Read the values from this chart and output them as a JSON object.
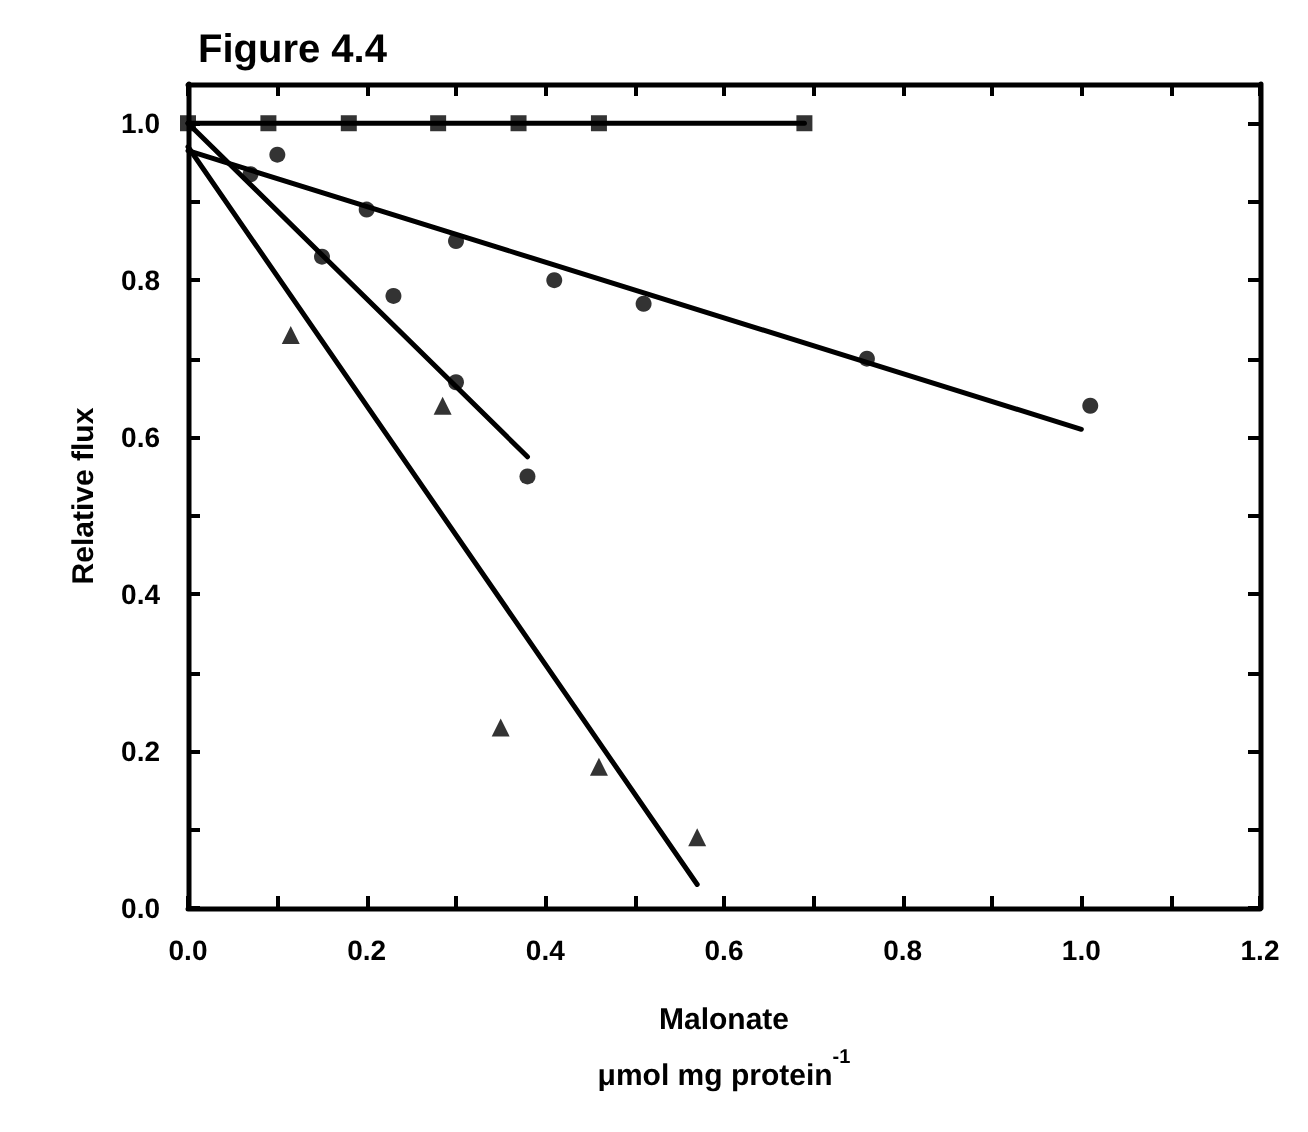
{
  "chart_data": {
    "type": "scatter",
    "title": "Figure 4.4",
    "xlabel": "Malonate\nμmol mg protein$^{-1}$",
    "ylabel": "Relative flux",
    "xlim": [
      0,
      1.2
    ],
    "xticks": [
      {
        "value": 0,
        "label": "0.0"
      },
      {
        "value": 0.1,
        "label": null
      },
      0.2,
      {
        "value": 0.3,
        "label": null
      },
      0.4,
      {
        "value": 0.5,
        "label": null
      },
      0.6,
      {
        "value": 0.7,
        "label": null
      },
      0.8,
      {
        "value": 0.9,
        "label": null
      },
      {
        "value": 1,
        "label": "1.0"
      },
      {
        "value": 1.1,
        "label": null
      },
      1.2
    ],
    "ylim": [
      0,
      1.05
    ],
    "yticks": [
      {
        "value": 0,
        "label": "0.0"
      },
      {
        "value": 0.1,
        "label": null
      },
      0.2,
      {
        "value": 0.3,
        "label": null
      },
      0.4,
      {
        "value": 0.5,
        "label": null
      },
      0.6,
      {
        "value": 0.7,
        "label": null
      },
      0.8,
      {
        "value": 0.9,
        "label": null
      },
      {
        "value": 1,
        "label": "1.0"
      }
    ],
    "grid": false,
    "series": [
      {
        "marker": "square",
        "color": "#000000",
        "x": [
          0,
          0.09,
          0.18,
          0.28,
          0.37,
          0.46,
          0.69
        ],
        "values": [
          1.0,
          1.0,
          1.0,
          1.0,
          1.0,
          1.0,
          1.0
        ]
      },
      {
        "type": "line",
        "marker": "none",
        "color": "#000000",
        "x": [
          0,
          0.69
        ],
        "values": [
          1.0,
          1.0
        ]
      },
      {
        "marker": "circle",
        "color": "#000000",
        "x": [
          0.1,
          0.2,
          0.3,
          0.41,
          0.51,
          0.76,
          1.01
        ],
        "values": [
          0.96,
          0.89,
          0.85,
          0.8,
          0.77,
          0.7,
          0.64
        ]
      },
      {
        "type": "line",
        "marker": "none",
        "color": "#000000",
        "x": [
          0,
          1.0
        ],
        "values": [
          0.965,
          0.61
        ]
      },
      {
        "marker": "circle",
        "color": "#000000",
        "x": [
          0.07,
          0.15,
          0.23,
          0.3,
          0.38
        ],
        "values": [
          0.935,
          0.83,
          0.78,
          0.67,
          0.55
        ]
      },
      {
        "type": "line",
        "marker": "none",
        "color": "#000000",
        "x": [
          0,
          0.38
        ],
        "values": [
          1.0,
          0.575
        ]
      },
      {
        "marker": "triangle",
        "color": "#000000",
        "x": [
          0.115,
          0.285,
          0.35,
          0.46,
          0.57
        ],
        "values": [
          0.73,
          0.64,
          0.23,
          0.18,
          0.09
        ]
      },
      {
        "type": "line",
        "marker": "none",
        "color": "#000000",
        "x": [
          0,
          0.57
        ],
        "values": [
          0.97,
          0.03
        ]
      }
    ]
  }
}
